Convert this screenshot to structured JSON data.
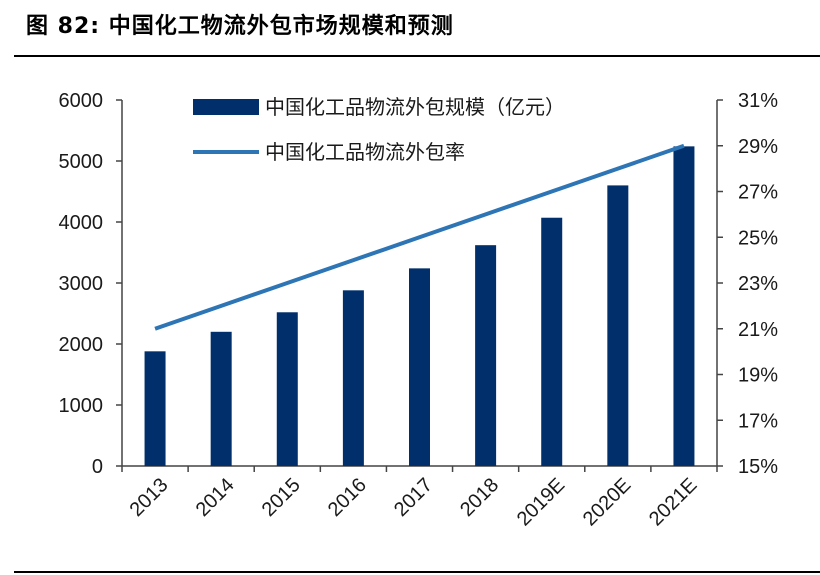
{
  "figure": {
    "title": "图 82:  中国化工物流外包市场规模和预测"
  },
  "chart_data": {
    "type": "bar+line",
    "categories": [
      "2013",
      "2014",
      "2015",
      "2016",
      "2017",
      "2018",
      "2019E",
      "2020E",
      "2021E"
    ],
    "series": [
      {
        "name": "中国化工品物流外包规模（亿元）",
        "type": "bar",
        "axis": "left",
        "color": "#002f6c",
        "values": [
          1880,
          2200,
          2520,
          2880,
          3240,
          3620,
          4070,
          4600,
          5240
        ]
      },
      {
        "name": "中国化工品物流外包率",
        "type": "line",
        "axis": "right",
        "color": "#2e75b6",
        "values": [
          21,
          22,
          23,
          24,
          25,
          26,
          27,
          28,
          29
        ]
      }
    ],
    "left_axis": {
      "ylim": [
        0,
        6000
      ],
      "ticks": [
        "0",
        "1000",
        "2000",
        "3000",
        "4000",
        "5000",
        "6000"
      ]
    },
    "right_axis": {
      "ylim": [
        15,
        31
      ],
      "unit": "%",
      "ticks": [
        "15%",
        "17%",
        "19%",
        "21%",
        "23%",
        "25%",
        "27%",
        "29%",
        "31%"
      ]
    },
    "legend_position": "top-left"
  }
}
